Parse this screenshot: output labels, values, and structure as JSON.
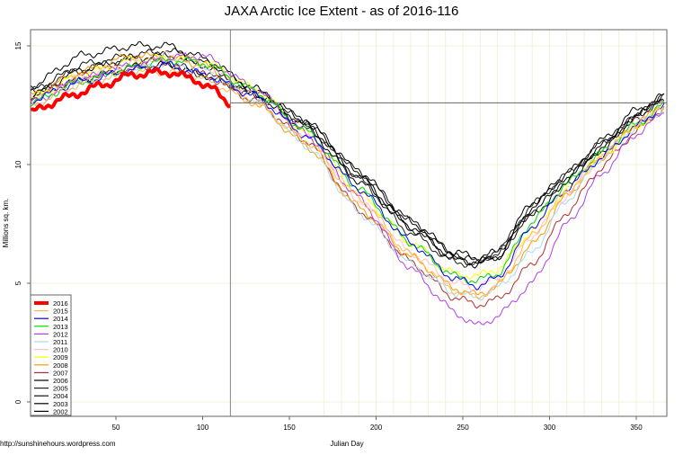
{
  "chart_data": {
    "type": "line",
    "title": "JAXA Arctic Ice Extent - as of 2016-116",
    "xlabel": "Julian Day",
    "ylabel": "Millions sq. km.",
    "source": "http://sunshinehours.wordpress.com",
    "xlim": [
      1,
      366
    ],
    "ylim": [
      -0.6,
      15.7
    ],
    "x_ticks": [
      50,
      100,
      150,
      200,
      250,
      300,
      350
    ],
    "y_ticks": [
      0,
      5,
      10,
      15
    ],
    "grid": true,
    "legend_position": "bottom-left",
    "reference_lines": {
      "vertical_day": 116,
      "horizontal_value": 12.6
    },
    "days": [
      1,
      30,
      60,
      80,
      100,
      130,
      160,
      190,
      220,
      245,
      258,
      270,
      290,
      310,
      330,
      350,
      366
    ],
    "series": [
      {
        "name": "2016",
        "color": "#ff0000",
        "days": [
          1,
          20,
          40,
          60,
          80,
          95,
          105,
          116
        ],
        "values": [
          12.2,
          12.8,
          13.3,
          13.8,
          13.9,
          13.6,
          13.2,
          12.6
        ]
      },
      {
        "name": "2015",
        "color": "#ffb84d",
        "values": [
          12.5,
          13.4,
          13.9,
          13.9,
          13.6,
          12.6,
          11.0,
          8.6,
          6.2,
          4.7,
          4.4,
          4.9,
          7.0,
          8.9,
          10.4,
          11.7,
          12.5
        ]
      },
      {
        "name": "2014",
        "color": "#0000ff",
        "values": [
          12.7,
          13.5,
          14.0,
          14.2,
          13.8,
          12.9,
          11.2,
          9.0,
          6.7,
          5.2,
          4.9,
          5.2,
          7.4,
          9.0,
          10.3,
          11.6,
          12.5
        ]
      },
      {
        "name": "2013",
        "color": "#00dd00",
        "values": [
          12.6,
          13.5,
          14.1,
          14.4,
          14.3,
          13.1,
          11.4,
          9.0,
          6.7,
          5.3,
          5.1,
          5.4,
          7.6,
          9.2,
          10.5,
          11.7,
          12.5
        ]
      },
      {
        "name": "2012",
        "color": "#b040e8",
        "values": [
          12.6,
          13.6,
          14.2,
          14.5,
          14.6,
          13.2,
          11.3,
          8.6,
          5.6,
          3.8,
          3.2,
          3.6,
          5.0,
          7.5,
          9.6,
          11.3,
          12.2
        ]
      },
      {
        "name": "2011",
        "color": "#a8d8f0",
        "values": [
          12.5,
          13.5,
          14.0,
          14.3,
          14.0,
          12.7,
          10.8,
          8.0,
          5.8,
          4.6,
          4.4,
          4.8,
          6.3,
          8.5,
          10.3,
          11.6,
          12.3
        ]
      },
      {
        "name": "2010",
        "color": "#ffc0cb",
        "values": [
          12.7,
          13.7,
          14.3,
          14.6,
          14.2,
          12.9,
          11.2,
          8.5,
          6.3,
          5.0,
          4.8,
          5.2,
          7.0,
          8.7,
          10.3,
          11.8,
          12.6
        ]
      },
      {
        "name": "2009",
        "color": "#ffff00",
        "values": [
          12.8,
          13.8,
          14.4,
          14.5,
          14.4,
          13.2,
          11.3,
          8.8,
          6.7,
          5.4,
          5.3,
          5.6,
          7.2,
          8.9,
          10.3,
          11.6,
          12.4
        ]
      },
      {
        "name": "2008",
        "color": "#ff9900",
        "values": [
          12.9,
          13.9,
          14.6,
          14.5,
          14.2,
          12.6,
          10.8,
          8.2,
          6.1,
          4.8,
          4.5,
          4.9,
          6.6,
          8.7,
          10.3,
          11.7,
          12.5
        ]
      },
      {
        "name": "2007",
        "color": "#b03030",
        "values": [
          12.8,
          13.7,
          14.1,
          14.2,
          13.8,
          12.7,
          11.0,
          8.1,
          5.9,
          4.4,
          4.1,
          4.3,
          5.8,
          8.0,
          9.9,
          11.4,
          12.4
        ]
      },
      {
        "name": "2006",
        "color": "#000000",
        "values": [
          12.9,
          13.6,
          14.1,
          14.2,
          13.8,
          12.9,
          11.5,
          9.3,
          7.3,
          6.0,
          5.8,
          6.1,
          8.0,
          9.3,
          10.8,
          12.0,
          12.8
        ]
      },
      {
        "name": "2005",
        "color": "#222222",
        "values": [
          13.1,
          14.0,
          14.4,
          14.3,
          13.8,
          13.0,
          11.6,
          9.4,
          7.1,
          5.9,
          5.8,
          6.3,
          8.3,
          9.6,
          10.9,
          12.0,
          12.7
        ]
      },
      {
        "name": "2004",
        "color": "#111111",
        "values": [
          13.0,
          14.2,
          14.6,
          14.8,
          14.3,
          13.1,
          11.8,
          9.7,
          7.6,
          6.2,
          5.9,
          6.3,
          7.9,
          9.2,
          10.6,
          12.1,
          12.8
        ]
      },
      {
        "name": "2003",
        "color": "#000000",
        "values": [
          13.3,
          14.6,
          15.0,
          15.0,
          14.5,
          13.2,
          11.8,
          9.7,
          7.6,
          6.3,
          6.1,
          6.3,
          8.4,
          9.5,
          10.7,
          12.0,
          13.0
        ]
      },
      {
        "name": "2002",
        "color": "#000000",
        "values": [
          12.9,
          14.0,
          14.5,
          14.6,
          14.2,
          13.0,
          11.7,
          9.5,
          7.4,
          6.1,
          5.9,
          6.1,
          8.2,
          9.6,
          11.0,
          12.3,
          12.9
        ]
      }
    ]
  }
}
